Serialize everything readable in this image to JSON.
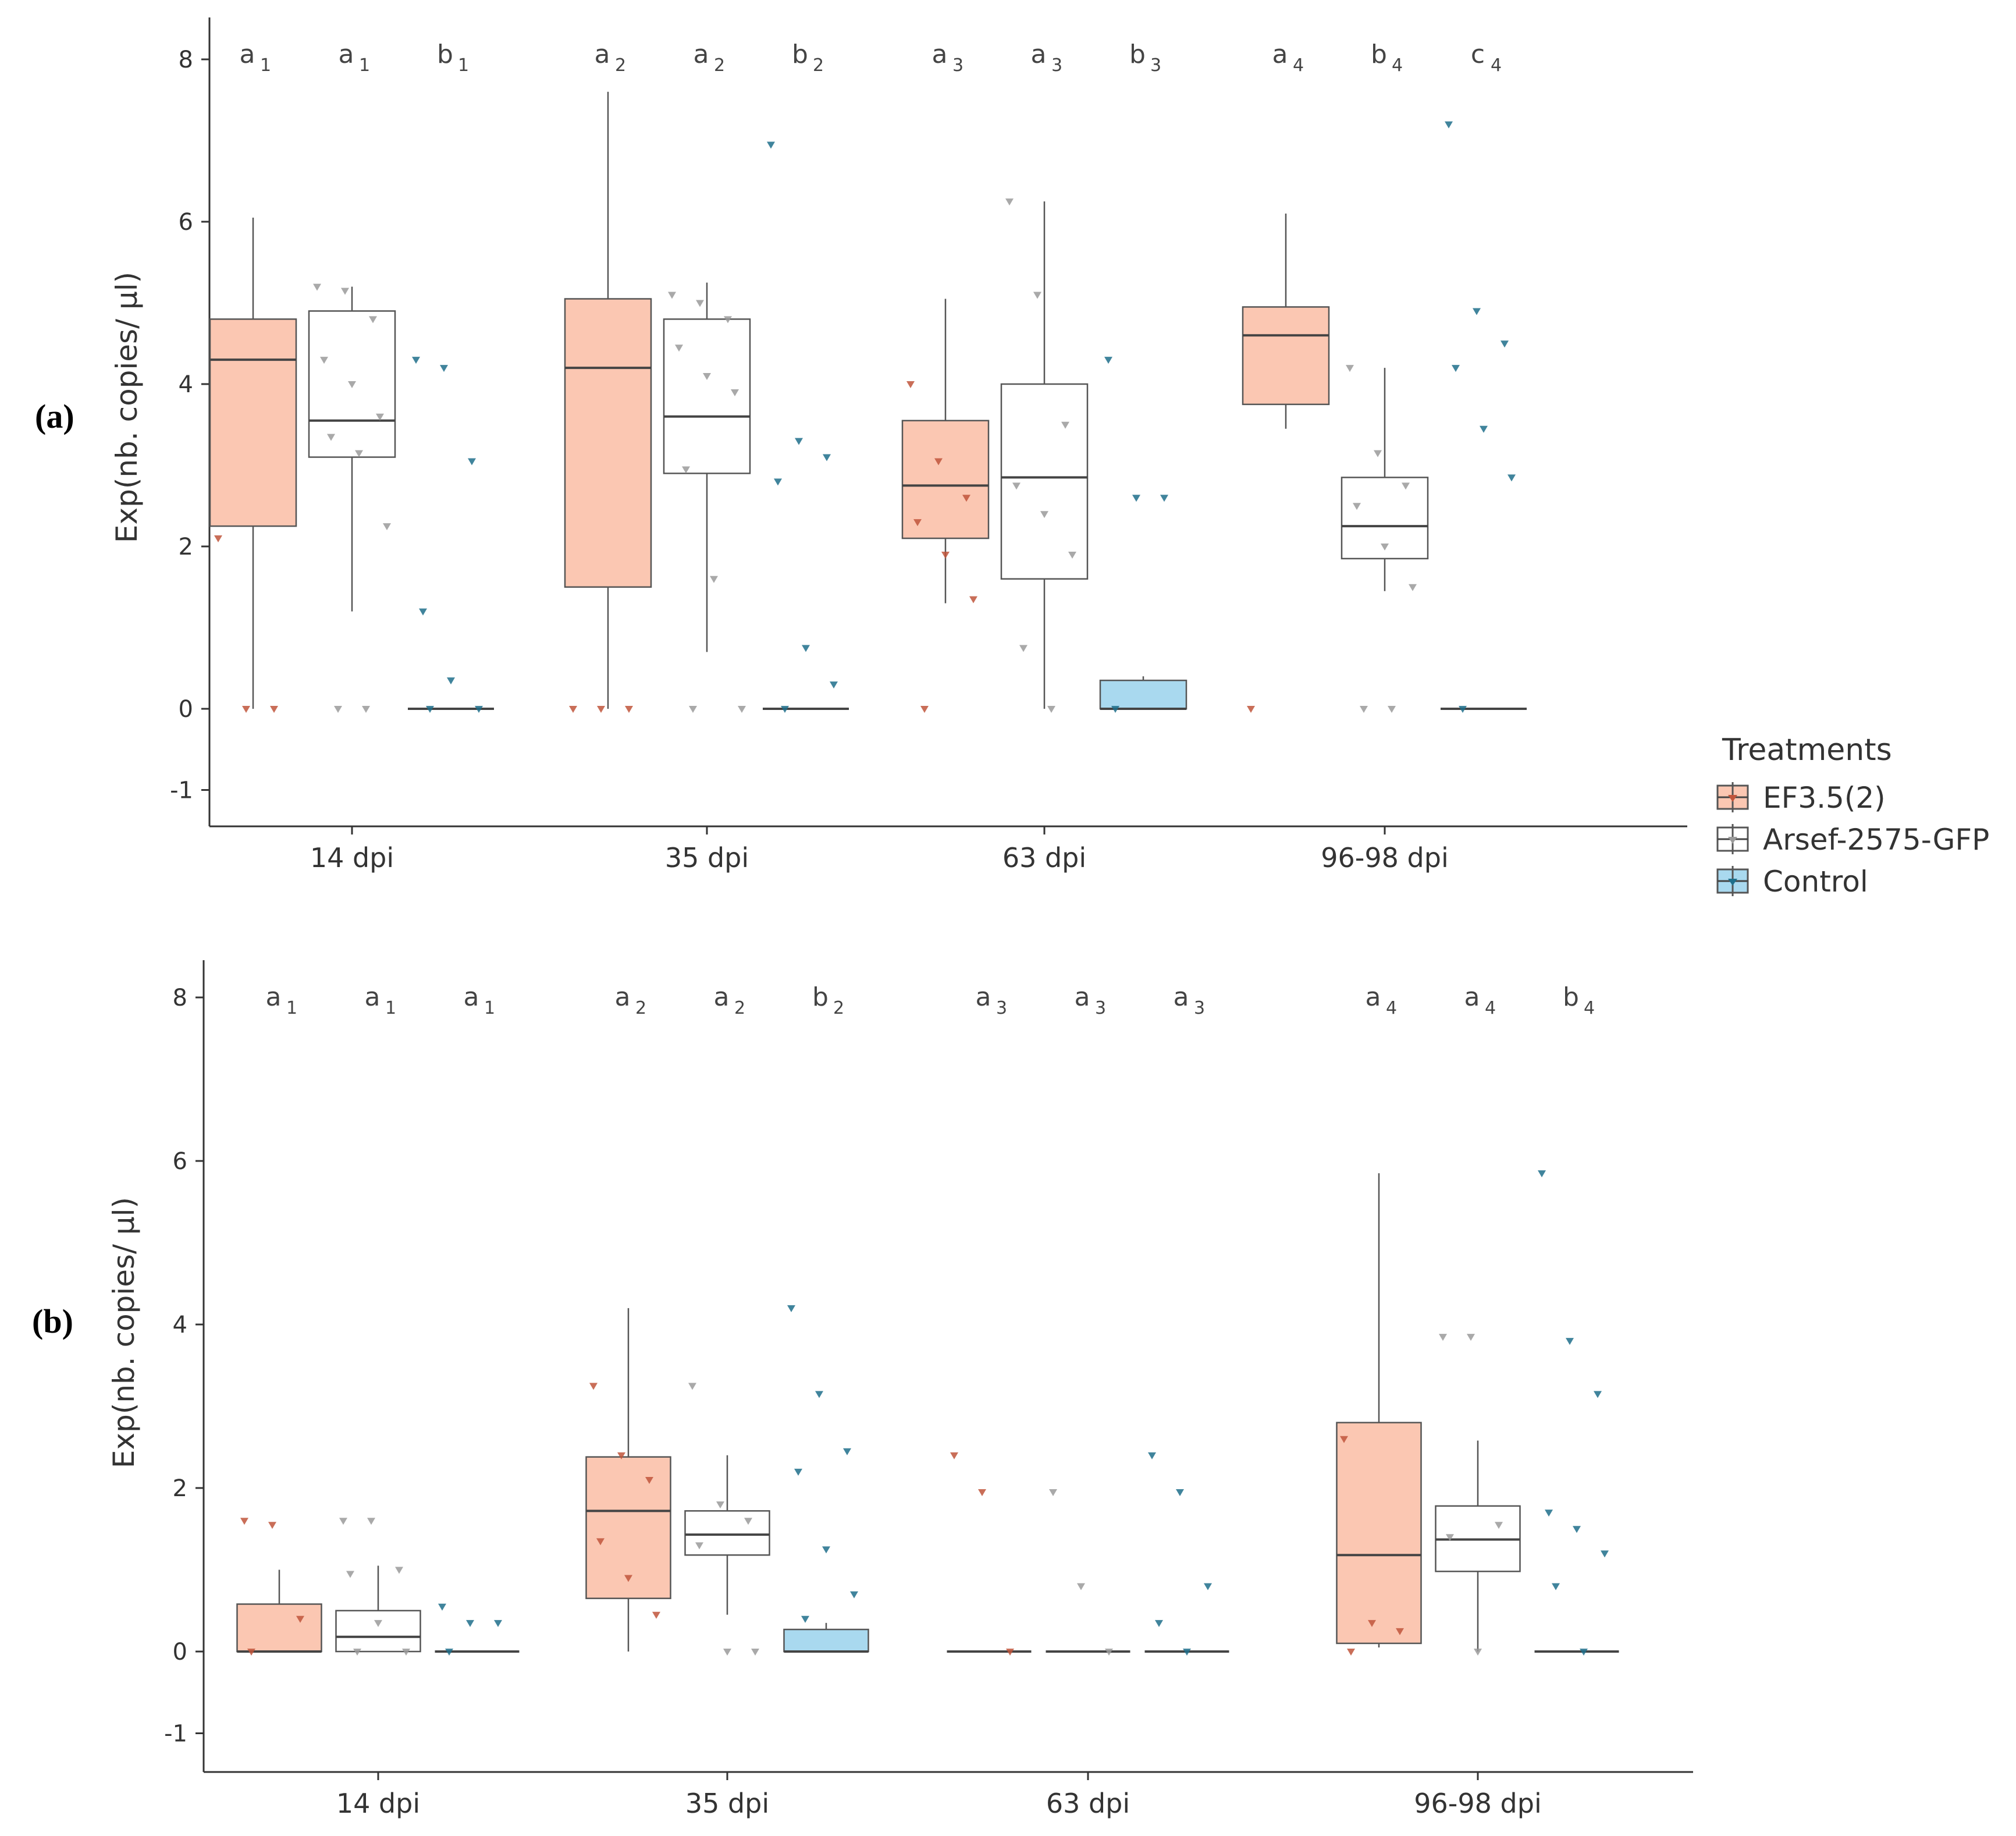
{
  "legend": {
    "title": "Treatments",
    "items": [
      {
        "label": "EF3.5(2)",
        "fill": "#fbc7b2",
        "point": "#c0553b"
      },
      {
        "label": "Arsef-2575-GFP",
        "fill": "#ffffff",
        "point": "#9a9a9a"
      },
      {
        "label": "Control",
        "fill": "#a9d9ef",
        "point": "#1f6f8b"
      }
    ]
  },
  "colors": {
    "axis": "#333333",
    "whisker": "#555555",
    "median": "#444444"
  },
  "chart_data": [
    {
      "type": "boxplot",
      "panel_label": "(a)",
      "ylabel": "Exp(nb. copies/ μl)",
      "ylim": [
        -1,
        8.4
      ],
      "yticks": [
        "-1",
        "0",
        "2",
        "4",
        "6",
        "8"
      ],
      "categories": [
        "14 dpi",
        "35 dpi",
        "63 dpi",
        "96-98 dpi"
      ],
      "letters": [
        [
          [
            "a",
            "1"
          ],
          [
            "a",
            "1"
          ],
          [
            "b",
            "1"
          ]
        ],
        [
          [
            "a",
            "2"
          ],
          [
            "a",
            "2"
          ],
          [
            "b",
            "2"
          ]
        ],
        [
          [
            "a",
            "3"
          ],
          [
            "a",
            "3"
          ],
          [
            "b",
            "3"
          ]
        ],
        [
          [
            "a",
            "4"
          ],
          [
            "b",
            "4"
          ],
          [
            "c",
            "4"
          ]
        ]
      ],
      "series": [
        {
          "name": "EF3.5(2)",
          "boxes": [
            {
              "min": 0,
              "q1": 2.25,
              "median": 4.3,
              "q3": 4.8,
              "max": 6.05,
              "points": [
                2.1,
                0,
                0
              ]
            },
            {
              "min": 0,
              "q1": 1.5,
              "median": 4.2,
              "q3": 5.05,
              "max": 7.6,
              "points": [
                0,
                0,
                0
              ]
            },
            {
              "min": 1.3,
              "q1": 2.1,
              "median": 2.75,
              "q3": 3.55,
              "max": 5.05,
              "points": [
                4.0,
                3.05,
                2.6,
                2.3,
                1.9,
                1.35,
                0
              ]
            },
            {
              "min": 3.45,
              "q1": 3.75,
              "median": 4.6,
              "q3": 4.95,
              "max": 6.1,
              "points": [
                0
              ]
            }
          ]
        },
        {
          "name": "Arsef-2575-GFP",
          "boxes": [
            {
              "min": 1.2,
              "q1": 3.1,
              "median": 3.55,
              "q3": 4.9,
              "max": 5.2,
              "points": [
                5.2,
                5.15,
                4.8,
                4.3,
                4.0,
                3.6,
                3.35,
                3.15,
                2.25,
                0,
                0
              ]
            },
            {
              "min": 0.7,
              "q1": 2.9,
              "median": 3.6,
              "q3": 4.8,
              "max": 5.25,
              "points": [
                5.1,
                5.0,
                4.8,
                4.45,
                4.1,
                3.9,
                2.95,
                1.6,
                0,
                0
              ]
            },
            {
              "min": 0,
              "q1": 1.6,
              "median": 2.85,
              "q3": 4.0,
              "max": 6.25,
              "points": [
                6.25,
                5.1,
                3.5,
                2.75,
                2.4,
                1.9,
                0.75,
                0
              ]
            },
            {
              "min": 1.45,
              "q1": 1.85,
              "median": 2.25,
              "q3": 2.85,
              "max": 4.2,
              "points": [
                4.2,
                3.15,
                2.75,
                2.5,
                2.0,
                1.5,
                0,
                0
              ]
            }
          ]
        },
        {
          "name": "Control",
          "boxes": [
            {
              "min": 0,
              "q1": 0,
              "median": 0,
              "q3": 0,
              "max": 0,
              "points": [
                4.3,
                4.2,
                3.05,
                1.2,
                0.35,
                0,
                0
              ]
            },
            {
              "min": 0,
              "q1": 0,
              "median": 0,
              "q3": 0,
              "max": 0,
              "points": [
                6.95,
                3.3,
                3.1,
                2.8,
                0.75,
                0.3,
                0
              ]
            },
            {
              "min": 0,
              "q1": 0,
              "median": 0,
              "q3": 0.35,
              "max": 0.4,
              "points": [
                4.3,
                2.6,
                2.6,
                0
              ]
            },
            {
              "min": 0,
              "q1": 0,
              "median": 0,
              "q3": 0,
              "max": 0,
              "points": [
                7.2,
                4.9,
                4.5,
                4.2,
                3.45,
                2.85,
                0
              ]
            }
          ]
        }
      ]
    },
    {
      "type": "boxplot",
      "panel_label": "(b)",
      "ylabel": "Exp(nb. copies/ μl)",
      "ylim": [
        -1,
        8.4
      ],
      "yticks": [
        "-1",
        "0",
        "2",
        "4",
        "6",
        "8"
      ],
      "categories": [
        "14 dpi",
        "35 dpi",
        "63 dpi",
        "96-98 dpi"
      ],
      "letters": [
        [
          [
            "a",
            "1"
          ],
          [
            "a",
            "1"
          ],
          [
            "a",
            "1"
          ]
        ],
        [
          [
            "a",
            "2"
          ],
          [
            "a",
            "2"
          ],
          [
            "b",
            "2"
          ]
        ],
        [
          [
            "a",
            "3"
          ],
          [
            "a",
            "3"
          ],
          [
            "a",
            "3"
          ]
        ],
        [
          [
            "a",
            "4"
          ],
          [
            "a",
            "4"
          ],
          [
            "b",
            "4"
          ]
        ]
      ],
      "series": [
        {
          "name": "EF3.5(2)",
          "boxes": [
            {
              "min": 0,
              "q1": 0,
              "median": 0,
              "q3": 0.58,
              "max": 1.0,
              "points": [
                1.6,
                1.55,
                0.4,
                0
              ]
            },
            {
              "min": 0,
              "q1": 0.65,
              "median": 1.72,
              "q3": 2.38,
              "max": 4.2,
              "points": [
                3.25,
                2.4,
                2.1,
                1.35,
                0.9,
                0.45
              ]
            },
            {
              "min": 0,
              "q1": 0,
              "median": 0,
              "q3": 0,
              "max": 0,
              "points": [
                2.4,
                1.95,
                0
              ]
            },
            {
              "min": 0.05,
              "q1": 0.1,
              "median": 1.18,
              "q3": 2.8,
              "max": 5.85,
              "points": [
                2.6,
                0.35,
                0.25,
                0
              ]
            }
          ]
        },
        {
          "name": "Arsef-2575-GFP",
          "boxes": [
            {
              "min": 0,
              "q1": 0,
              "median": 0.18,
              "q3": 0.5,
              "max": 1.05,
              "points": [
                1.6,
                1.6,
                1.0,
                0.95,
                0.35,
                0,
                0
              ]
            },
            {
              "min": 0.45,
              "q1": 1.18,
              "median": 1.43,
              "q3": 1.72,
              "max": 2.4,
              "points": [
                3.25,
                1.8,
                1.6,
                1.3,
                0,
                0
              ]
            },
            {
              "min": 0,
              "q1": 0,
              "median": 0,
              "q3": 0,
              "max": 0,
              "points": [
                1.95,
                0.8,
                0
              ]
            },
            {
              "min": 0,
              "q1": 0.98,
              "median": 1.37,
              "q3": 1.78,
              "max": 2.58,
              "points": [
                3.85,
                3.85,
                1.55,
                1.4,
                0
              ]
            }
          ]
        },
        {
          "name": "Control",
          "boxes": [
            {
              "min": 0,
              "q1": 0,
              "median": 0,
              "q3": 0,
              "max": 0,
              "points": [
                0.55,
                0.35,
                0.35,
                0
              ]
            },
            {
              "min": 0,
              "q1": 0,
              "median": 0,
              "q3": 0.27,
              "max": 0.35,
              "points": [
                4.2,
                3.15,
                2.45,
                2.2,
                1.25,
                0.7,
                0.4
              ]
            },
            {
              "min": 0,
              "q1": 0,
              "median": 0,
              "q3": 0,
              "max": 0,
              "points": [
                2.4,
                1.95,
                0.8,
                0.35,
                0
              ]
            },
            {
              "min": 0,
              "q1": 0,
              "median": 0,
              "q3": 0,
              "max": 0,
              "points": [
                5.85,
                3.8,
                3.15,
                1.7,
                1.5,
                1.2,
                0.8,
                0
              ]
            }
          ]
        }
      ]
    }
  ]
}
